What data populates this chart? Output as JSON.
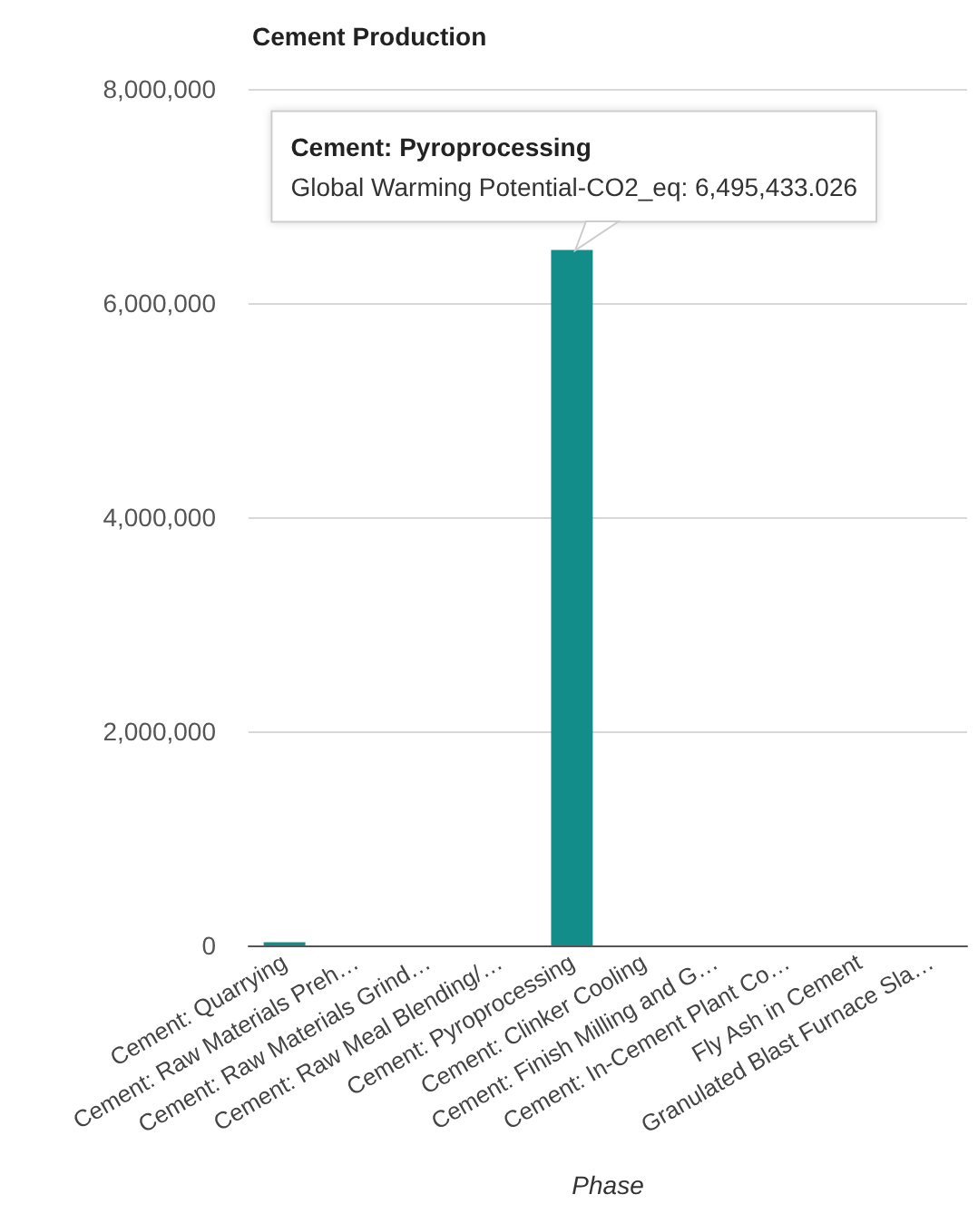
{
  "chart_data": {
    "type": "bar",
    "title": "Cement Production",
    "xlabel": "Phase",
    "categories": [
      "Cement: Quarrying",
      "Cement: Raw Materials Preh…",
      "Cement: Raw Materials Grind…",
      "Cement: Raw Meal Blending/…",
      "Cement: Pyroprocessing",
      "Cement: Clinker Cooling",
      "Cement: Finish Milling and G…",
      "Cement: In-Cement Plant Co…",
      "Fly Ash in Cement",
      "Granulated Blast Furnace Sla…"
    ],
    "values": [
      30000,
      0,
      0,
      0,
      6495433.026,
      0,
      0,
      0,
      0,
      0
    ],
    "color": "#138d89",
    "ylim": [
      0,
      8000000
    ],
    "yticks": [
      0,
      {
        "value": 2000000,
        "label": "2,000,000"
      },
      {
        "value": 4000000,
        "label": "4,000,000"
      },
      {
        "value": 6000000,
        "label": "6,000,000"
      },
      {
        "value": 8000000,
        "label": "8,000,000"
      }
    ],
    "grid": "y",
    "annotations": [
      {
        "text": "Cement: Pyroprocessing\nGlobal Warming Potential-CO2_eq: 6,495,433.026",
        "x": "Cement: Pyroprocessing",
        "y": 6495433.026
      }
    ]
  }
}
